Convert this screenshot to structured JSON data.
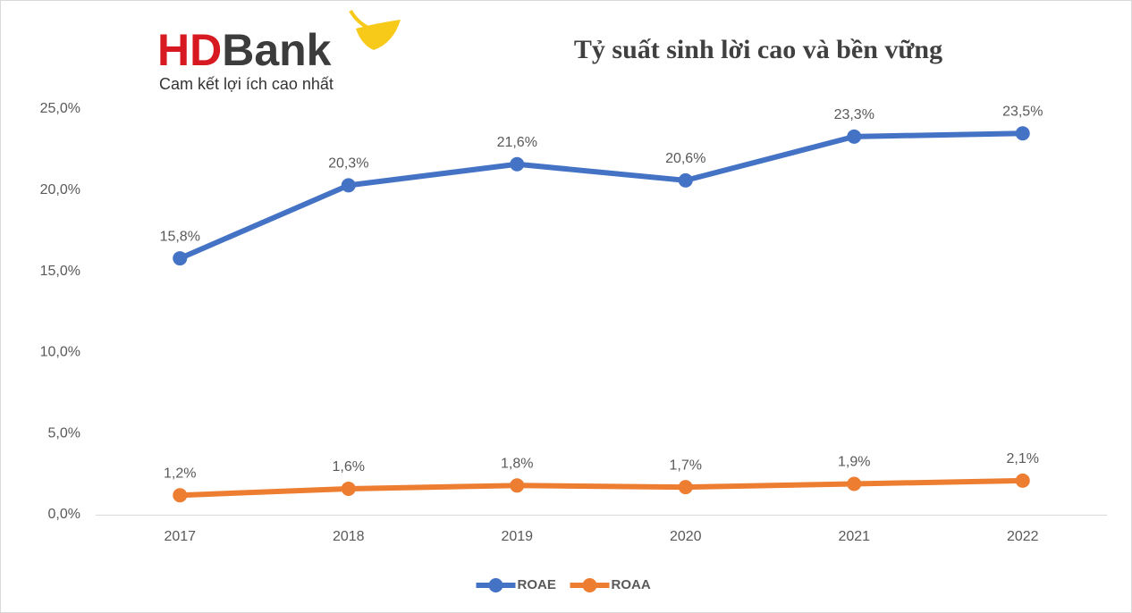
{
  "logo": {
    "brand_hd": "HD",
    "brand_bank": "Bank",
    "tagline": "Cam kết lợi ích cao nhất"
  },
  "chart_data": {
    "type": "line",
    "title": "Tỷ suất sinh lời cao và bền vững",
    "categories": [
      "2017",
      "2018",
      "2019",
      "2020",
      "2021",
      "2022"
    ],
    "series": [
      {
        "name": "ROAE",
        "color": "#4472c4",
        "values": [
          15.8,
          20.3,
          21.6,
          20.6,
          23.3,
          23.5
        ],
        "value_labels": [
          "15,8%",
          "20,3%",
          "21,6%",
          "20,6%",
          "23,3%",
          "23,5%"
        ]
      },
      {
        "name": "ROAA",
        "color": "#ed7d31",
        "values": [
          1.2,
          1.6,
          1.8,
          1.7,
          1.9,
          2.1
        ],
        "value_labels": [
          "1,2%",
          "1,6%",
          "1,8%",
          "1,7%",
          "1,9%",
          "2,1%"
        ]
      }
    ],
    "ylim": [
      0,
      25
    ],
    "yticks": [
      {
        "value": 0,
        "label": "0,0%"
      },
      {
        "value": 5,
        "label": "5,0%"
      },
      {
        "value": 10,
        "label": "10,0%"
      },
      {
        "value": 15,
        "label": "15,0%"
      },
      {
        "value": 20,
        "label": "20,0%"
      },
      {
        "value": 25,
        "label": "25,0%"
      }
    ],
    "grid": false,
    "legend": "bottom"
  }
}
